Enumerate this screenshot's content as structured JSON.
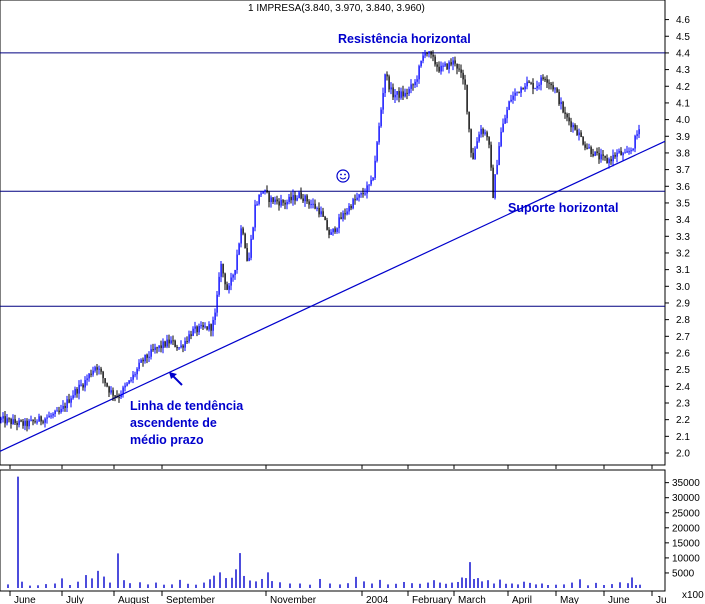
{
  "chart_data": [
    {
      "type": "candlestick",
      "title": "1 IMPRESA(3.840, 3.970, 3.840, 3.960)",
      "x_ticks": [
        "June",
        "July",
        "August",
        "September",
        "November",
        "2004",
        "February",
        "March",
        "April",
        "May",
        "June",
        "Ju"
      ],
      "ylim": [
        1.95,
        4.7
      ],
      "y_ticks": [
        "4.6",
        "4.5",
        "4.4",
        "4.3",
        "4.2",
        "4.1",
        "4.0",
        "3.9",
        "3.8",
        "3.7",
        "3.6",
        "3.5",
        "3.4",
        "3.3",
        "3.2",
        "3.1",
        "3.0",
        "2.9",
        "2.8",
        "2.7",
        "2.6",
        "2.5",
        "2.4",
        "2.3",
        "2.2",
        "2.1",
        "2.0"
      ],
      "price_path": [
        [
          0,
          2.2
        ],
        [
          25,
          2.17
        ],
        [
          45,
          2.21
        ],
        [
          60,
          2.24
        ],
        [
          72,
          2.35
        ],
        [
          85,
          2.43
        ],
        [
          96,
          2.53
        ],
        [
          110,
          2.37
        ],
        [
          118,
          2.34
        ],
        [
          130,
          2.43
        ],
        [
          142,
          2.55
        ],
        [
          155,
          2.62
        ],
        [
          170,
          2.67
        ],
        [
          180,
          2.63
        ],
        [
          192,
          2.73
        ],
        [
          212,
          2.76
        ],
        [
          216,
          2.85
        ],
        [
          220,
          3.15
        ],
        [
          228,
          2.96
        ],
        [
          235,
          3.12
        ],
        [
          242,
          3.38
        ],
        [
          248,
          3.12
        ],
        [
          255,
          3.48
        ],
        [
          262,
          3.58
        ],
        [
          270,
          3.52
        ],
        [
          285,
          3.5
        ],
        [
          300,
          3.55
        ],
        [
          310,
          3.5
        ],
        [
          320,
          3.45
        ],
        [
          330,
          3.3
        ],
        [
          340,
          3.4
        ],
        [
          352,
          3.5
        ],
        [
          362,
          3.55
        ],
        [
          372,
          3.62
        ],
        [
          378,
          3.9
        ],
        [
          385,
          4.28
        ],
        [
          392,
          4.15
        ],
        [
          405,
          4.15
        ],
        [
          415,
          4.22
        ],
        [
          425,
          4.42
        ],
        [
          440,
          4.3
        ],
        [
          455,
          4.35
        ],
        [
          465,
          4.2
        ],
        [
          472,
          3.75
        ],
        [
          480,
          3.95
        ],
        [
          488,
          3.9
        ],
        [
          493,
          3.55
        ],
        [
          500,
          3.9
        ],
        [
          510,
          4.12
        ],
        [
          525,
          4.22
        ],
        [
          535,
          4.2
        ],
        [
          545,
          4.26
        ],
        [
          555,
          4.18
        ],
        [
          565,
          4.02
        ],
        [
          575,
          3.95
        ],
        [
          585,
          3.85
        ],
        [
          597,
          3.78
        ],
        [
          607,
          3.75
        ],
        [
          618,
          3.8
        ],
        [
          625,
          3.78
        ],
        [
          632,
          3.83
        ],
        [
          640,
          3.96
        ]
      ],
      "lines": [
        {
          "label": "Resistência horizontal",
          "kind": "horizontal",
          "y": 4.4
        },
        {
          "label": "Suporte horizontal",
          "kind": "horizontal",
          "y": 3.57
        },
        {
          "label": "",
          "kind": "horizontal",
          "y": 2.88
        },
        {
          "label": "Linha de tendência ascendente de médio prazo",
          "kind": "trend",
          "x": [
            "June",
            "Ju"
          ],
          "y": [
            2.01,
            3.87
          ]
        }
      ],
      "annotations": [
        "Resistência horizontal",
        "Suporte horizontal",
        "Linha de tendência",
        "ascendente de",
        "médio prazo"
      ]
    },
    {
      "type": "bar",
      "title": "",
      "ylim": [
        0,
        40000
      ],
      "y_ticks": [
        "35000",
        "30000",
        "25000",
        "20000",
        "15000",
        "10000",
        "5000",
        "x100"
      ],
      "bars": [
        [
          8,
          1200
        ],
        [
          18,
          37000
        ],
        [
          22,
          2100
        ],
        [
          30,
          800
        ],
        [
          38,
          900
        ],
        [
          46,
          1300
        ],
        [
          55,
          1500
        ],
        [
          62,
          3200
        ],
        [
          70,
          1000
        ],
        [
          78,
          2100
        ],
        [
          86,
          4300
        ],
        [
          92,
          3200
        ],
        [
          98,
          5700
        ],
        [
          104,
          3800
        ],
        [
          110,
          1800
        ],
        [
          118,
          11500
        ],
        [
          124,
          2600
        ],
        [
          130,
          1600
        ],
        [
          140,
          1900
        ],
        [
          148,
          1200
        ],
        [
          156,
          1800
        ],
        [
          164,
          1100
        ],
        [
          172,
          1200
        ],
        [
          180,
          2700
        ],
        [
          188,
          1400
        ],
        [
          196,
          1100
        ],
        [
          204,
          1800
        ],
        [
          210,
          2900
        ],
        [
          214,
          4100
        ],
        [
          220,
          5200
        ],
        [
          226,
          3300
        ],
        [
          232,
          3400
        ],
        [
          236,
          6200
        ],
        [
          240,
          11600
        ],
        [
          244,
          4000
        ],
        [
          250,
          2500
        ],
        [
          256,
          2200
        ],
        [
          262,
          3000
        ],
        [
          268,
          5200
        ],
        [
          272,
          2300
        ],
        [
          280,
          1900
        ],
        [
          290,
          1500
        ],
        [
          300,
          1500
        ],
        [
          310,
          1100
        ],
        [
          320,
          3000
        ],
        [
          330,
          1500
        ],
        [
          340,
          1200
        ],
        [
          348,
          1600
        ],
        [
          356,
          3700
        ],
        [
          364,
          2200
        ],
        [
          372,
          1500
        ],
        [
          380,
          2700
        ],
        [
          388,
          1200
        ],
        [
          396,
          1400
        ],
        [
          404,
          2000
        ],
        [
          412,
          1600
        ],
        [
          420,
          1400
        ],
        [
          428,
          1800
        ],
        [
          434,
          2600
        ],
        [
          440,
          1800
        ],
        [
          446,
          1400
        ],
        [
          452,
          1800
        ],
        [
          458,
          2000
        ],
        [
          462,
          3500
        ],
        [
          466,
          3300
        ],
        [
          470,
          8600
        ],
        [
          474,
          3000
        ],
        [
          478,
          3300
        ],
        [
          482,
          2200
        ],
        [
          488,
          2600
        ],
        [
          494,
          1500
        ],
        [
          500,
          2800
        ],
        [
          506,
          1400
        ],
        [
          512,
          1500
        ],
        [
          518,
          1200
        ],
        [
          524,
          2100
        ],
        [
          530,
          1700
        ],
        [
          536,
          1200
        ],
        [
          542,
          1500
        ],
        [
          548,
          1000
        ],
        [
          556,
          1100
        ],
        [
          564,
          1200
        ],
        [
          572,
          1800
        ],
        [
          580,
          2900
        ],
        [
          588,
          900
        ],
        [
          596,
          1700
        ],
        [
          604,
          1000
        ],
        [
          612,
          1300
        ],
        [
          620,
          1900
        ],
        [
          628,
          1600
        ],
        [
          632,
          3500
        ],
        [
          636,
          1000
        ],
        [
          640,
          1100
        ]
      ]
    }
  ]
}
